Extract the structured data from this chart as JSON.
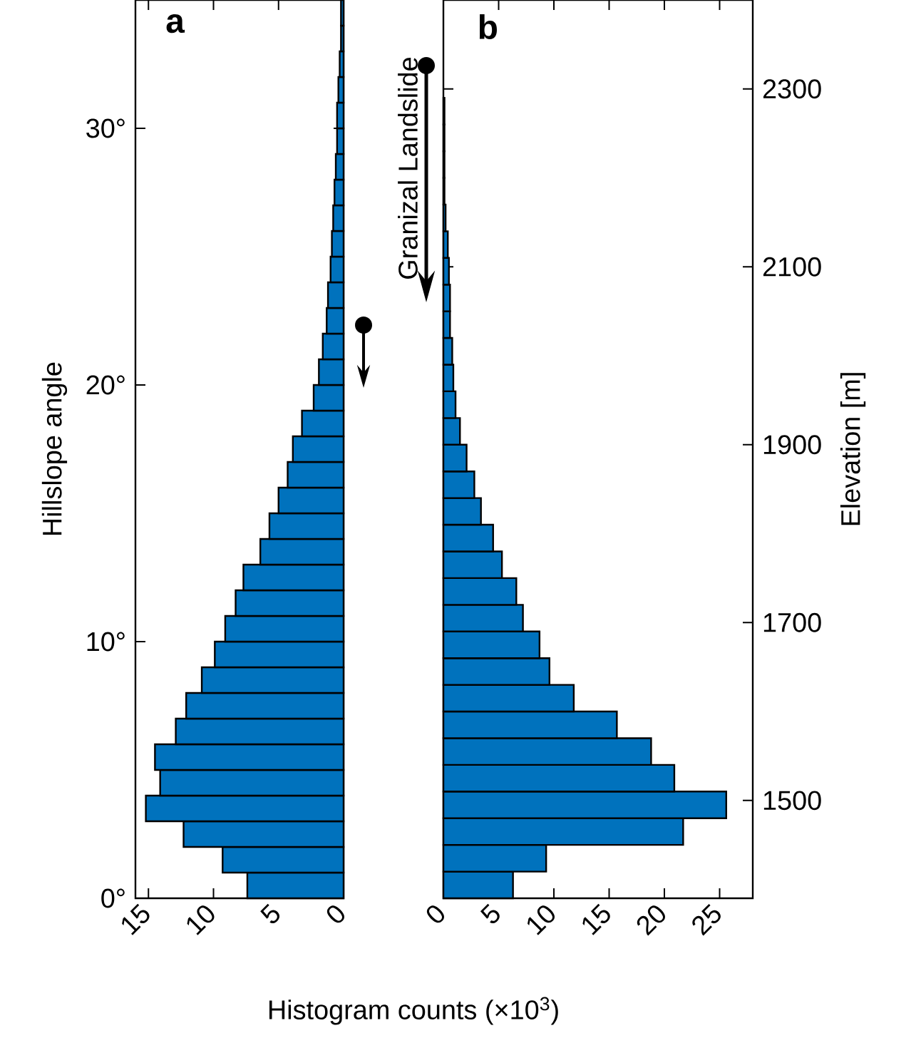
{
  "chart_data": [
    {
      "type": "histogram",
      "orientation": "horizontal",
      "title": "a",
      "ylabel": "Hillslope angle",
      "xlabel": "Histogram counts (×10$^{3}$)",
      "color": "#0072bd",
      "bins": [
        0,
        1,
        2,
        3,
        4,
        5,
        6,
        7,
        8,
        9,
        10,
        11,
        12,
        13,
        14,
        15,
        16,
        17,
        18,
        19,
        20,
        21,
        22,
        23,
        24,
        25,
        26,
        27,
        28,
        29,
        30,
        31,
        32,
        33,
        34,
        35
      ],
      "values": [
        7.4,
        9.3,
        12.3,
        15.2,
        14.1,
        14.5,
        12.9,
        12.1,
        10.9,
        9.9,
        9.1,
        8.3,
        7.7,
        6.4,
        5.7,
        5.0,
        4.3,
        3.9,
        3.2,
        2.3,
        1.9,
        1.6,
        1.3,
        1.2,
        1.0,
        0.9,
        0.8,
        0.7,
        0.6,
        0.5,
        0.5,
        0.4,
        0.3,
        0.2,
        0.2
      ],
      "xlim": [
        16,
        0
      ],
      "xticks": [
        15,
        10,
        5,
        0
      ],
      "ylim": [
        0,
        35
      ],
      "yticks": [
        {
          "value": 0,
          "label": "0°"
        },
        {
          "value": 10,
          "label": "10°"
        },
        {
          "value": 20,
          "label": "20°"
        },
        {
          "value": 30,
          "label": "30°"
        }
      ]
    },
    {
      "type": "histogram",
      "orientation": "horizontal",
      "title": "b",
      "ylabel": "Elevation [m]",
      "color": "#0072bd",
      "bins": [
        1390,
        1420,
        1450,
        1480,
        1510,
        1540,
        1570,
        1600,
        1630,
        1660,
        1690,
        1720,
        1750,
        1780,
        1810,
        1840,
        1870,
        1900,
        1930,
        1960,
        1990,
        2020,
        2050,
        2080,
        2110,
        2140,
        2170,
        2200,
        2230,
        2260,
        2290
      ],
      "values": [
        6.3,
        9.3,
        21.7,
        25.6,
        20.9,
        18.8,
        15.7,
        11.8,
        9.6,
        8.7,
        7.2,
        6.6,
        5.3,
        4.5,
        3.4,
        2.8,
        2.1,
        1.5,
        1.1,
        0.9,
        0.8,
        0.6,
        0.6,
        0.5,
        0.4,
        0.2,
        0.1,
        0.1,
        0.1,
        0.1
      ],
      "xlim": [
        0,
        28
      ],
      "xticks": [
        0,
        5,
        10,
        15,
        20,
        25
      ],
      "ylim": [
        1390,
        2400
      ],
      "yticks": [
        1500,
        1700,
        1900,
        2100,
        2300
      ],
      "annotations": [
        "Granizal Landslide"
      ]
    }
  ]
}
